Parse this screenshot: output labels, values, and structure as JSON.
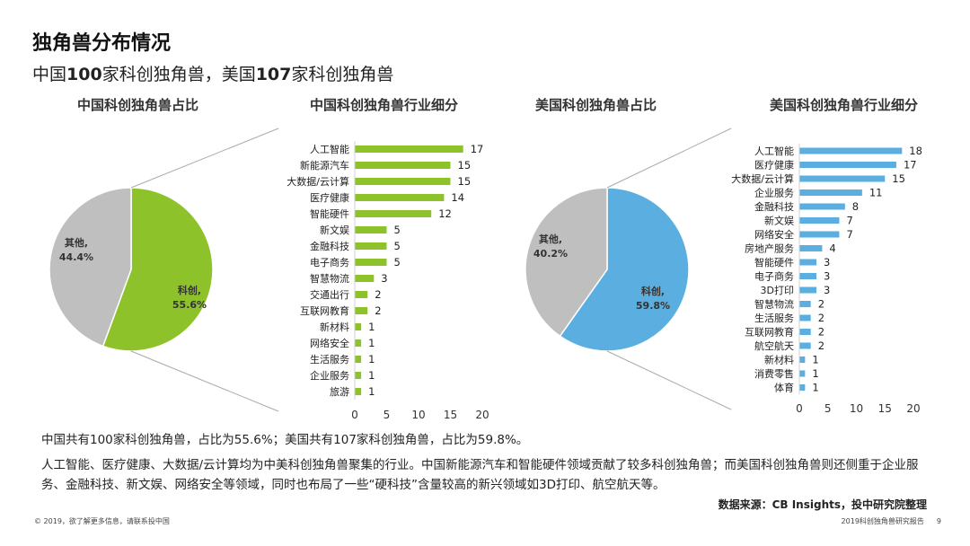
{
  "header": {
    "title": "独角兽分布情况",
    "subtitle_parts": [
      "中国",
      "100",
      "家科创独角兽，美国",
      "107",
      "家科创独角兽"
    ]
  },
  "panels": {
    "cn_pie_title": "中国科创独角兽占比",
    "cn_bar_title": "中国科创独角兽行业细分",
    "us_pie_title": "美国科创独角兽占比",
    "us_bar_title": "美国科创独角兽行业细分"
  },
  "colors": {
    "cn_pie_main": "#8dc22a",
    "us_pie_main": "#5aafe0",
    "pie_other": "#bfbfbf",
    "bar": "#8dc22a",
    "us_bar": "#5aafe0"
  },
  "chart_data": [
    {
      "id": "cn-pie",
      "type": "pie",
      "slices": [
        {
          "label": "科创,",
          "value": 55.6,
          "value_label": "55.6%"
        },
        {
          "label": "其他,",
          "value": 44.4,
          "value_label": "44.4%"
        }
      ]
    },
    {
      "id": "cn-bar",
      "type": "bar",
      "orientation": "horizontal",
      "categories": [
        "人工智能",
        "新能源汽车",
        "大数据/云计算",
        "医疗健康",
        "智能硬件",
        "新文娱",
        "金融科技",
        "电子商务",
        "智慧物流",
        "交通出行",
        "互联网教育",
        "新材料",
        "网络安全",
        "生活服务",
        "企业服务",
        "旅游"
      ],
      "values": [
        17,
        15,
        15,
        14,
        12,
        5,
        5,
        5,
        3,
        2,
        2,
        1,
        1,
        1,
        1,
        1
      ],
      "xlim": [
        0,
        20
      ],
      "xticks": [
        "0",
        "5",
        "10",
        "15",
        "20"
      ]
    },
    {
      "id": "us-pie",
      "type": "pie",
      "slices": [
        {
          "label": "科创,",
          "value": 59.8,
          "value_label": "59.8%"
        },
        {
          "label": "其他,",
          "value": 40.2,
          "value_label": "40.2%"
        }
      ]
    },
    {
      "id": "us-bar",
      "type": "bar",
      "orientation": "horizontal",
      "categories": [
        "人工智能",
        "医疗健康",
        "大数据/云计算",
        "企业服务",
        "金融科技",
        "新文娱",
        "网络安全",
        "房地产服务",
        "智能硬件",
        "电子商务",
        "3D打印",
        "智慧物流",
        "生活服务",
        "互联网教育",
        "航空航天",
        "新材料",
        "消费零售",
        "体育"
      ],
      "values": [
        18,
        17,
        15,
        11,
        8,
        7,
        7,
        4,
        3,
        3,
        3,
        2,
        2,
        2,
        2,
        1,
        1,
        1
      ],
      "xlim": [
        0,
        20
      ],
      "xticks": [
        "0",
        "5",
        "10",
        "15",
        "20"
      ]
    }
  ],
  "notes": {
    "summary1": "中国共有100家科创独角兽，占比为55.6%；美国共有107家科创独角兽，占比为59.8%。",
    "summary2": "人工智能、医疗健康、大数据/云计算均为中美科创独角兽聚集的行业。中国新能源汽车和智能硬件领域贡献了较多科创独角兽；而美国科创独角兽则还侧重于企业服务、金融科技、新文娱、网络安全等领域，同时也布局了一些“硬科技”含量较高的新兴领域如3D打印、航空航天等。",
    "source": "数据来源：CB Insights，投中研究院整理"
  },
  "footer": {
    "left": "© 2019，欲了解更多信息，请联系投中国",
    "report": "2019科创独角兽研究报告",
    "page": "9"
  }
}
